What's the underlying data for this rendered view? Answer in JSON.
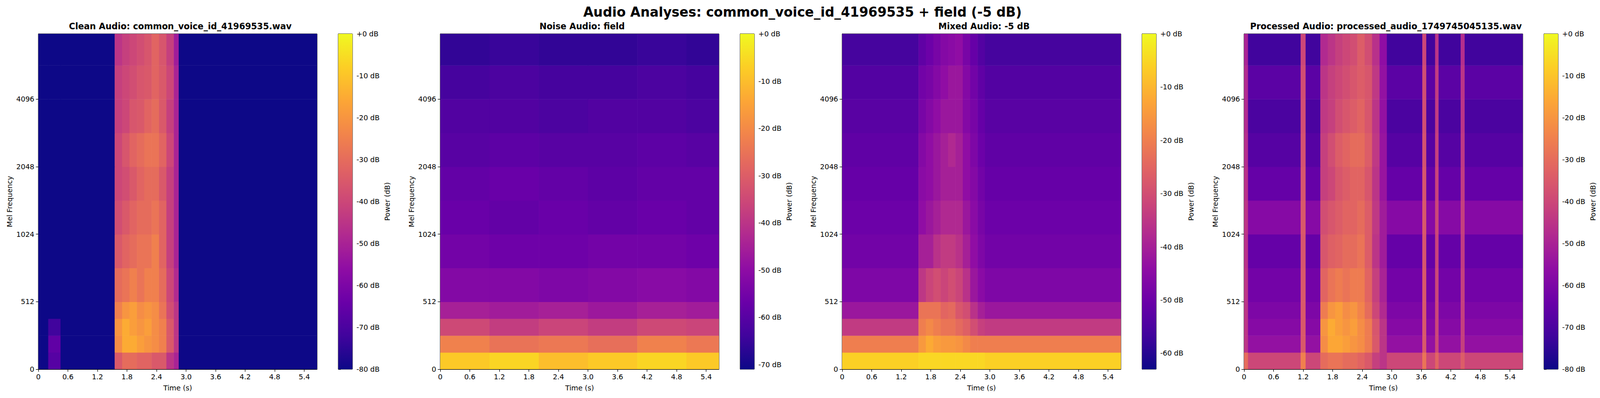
{
  "title": "Audio Analyses: common_voice_id_41969535 + field (-5 dB)",
  "chart_data": [
    {
      "type": "heatmap",
      "title": "Clean Audio: common_voice_id_41969535.wav",
      "x_label": "Time (s)",
      "y_label": "Mel Frequency",
      "xlim": [
        0,
        5.66
      ],
      "xticks": [
        0,
        0.6,
        1.2,
        1.8,
        2.4,
        {
          "value": 3,
          "label": "3.0"
        },
        3.6,
        4.2,
        4.8,
        5.4
      ],
      "ylim": [
        0,
        8000
      ],
      "yticks": [
        0,
        512,
        1024,
        2048,
        4096
      ],
      "x_bins": [
        0,
        0.2,
        0.45,
        1.55,
        1.7,
        1.85,
        2.0,
        2.15,
        2.3,
        2.45,
        2.6,
        2.75,
        2.85,
        5.66
      ],
      "y_bins": [
        0,
        128,
        256,
        384,
        512,
        768,
        1024,
        1448,
        2048,
        2896,
        4096,
        5793,
        8000
      ],
      "cells": [
        [
          -80,
          -68,
          -80,
          -35,
          -30,
          -30,
          -32,
          -32,
          -35,
          -35,
          -45,
          -50,
          -80
        ],
        [
          -80,
          -66,
          -80,
          -22,
          -15,
          -15,
          -18,
          -20,
          -22,
          -25,
          -35,
          -45,
          -80
        ],
        [
          -80,
          -72,
          -80,
          -20,
          -15,
          -18,
          -20,
          -18,
          -22,
          -25,
          -35,
          -45,
          -80
        ],
        [
          -80,
          -80,
          -80,
          -25,
          -20,
          -18,
          -22,
          -20,
          -22,
          -28,
          -38,
          -45,
          -80
        ],
        [
          -80,
          -80,
          -80,
          -30,
          -28,
          -25,
          -28,
          -25,
          -25,
          -30,
          -40,
          -48,
          -80
        ],
        [
          -80,
          -80,
          -80,
          -35,
          -32,
          -30,
          -28,
          -28,
          -25,
          -32,
          -42,
          -50,
          -80
        ],
        [
          -80,
          -80,
          -80,
          -38,
          -35,
          -32,
          -30,
          -30,
          -28,
          -32,
          -42,
          -50,
          -80
        ],
        [
          -80,
          -80,
          -80,
          -40,
          -38,
          -35,
          -32,
          -30,
          -30,
          -35,
          -42,
          -50,
          -80
        ],
        [
          -80,
          -80,
          -80,
          -40,
          -36,
          -32,
          -30,
          -28,
          -28,
          -32,
          -40,
          -50,
          -80
        ],
        [
          -80,
          -80,
          -80,
          -42,
          -40,
          -36,
          -35,
          -32,
          -30,
          -35,
          -42,
          -50,
          -80
        ],
        [
          -80,
          -80,
          -80,
          -42,
          -40,
          -38,
          -36,
          -35,
          -32,
          -35,
          -40,
          -50,
          -80
        ],
        [
          -80,
          -80,
          -80,
          -45,
          -42,
          -40,
          -38,
          -36,
          -32,
          -36,
          -42,
          -52,
          -80
        ]
      ],
      "colorbar": {
        "label": "Power (dB)",
        "range": [
          -80,
          0
        ],
        "ticks": [
          {
            "value": 0,
            "label": "+0 dB"
          },
          {
            "value": -10,
            "label": "-10 dB"
          },
          {
            "value": -20,
            "label": "-20 dB"
          },
          {
            "value": -30,
            "label": "-30 dB"
          },
          {
            "value": -40,
            "label": "-40 dB"
          },
          {
            "value": -50,
            "label": "-50 dB"
          },
          {
            "value": -60,
            "label": "-60 dB"
          },
          {
            "value": -70,
            "label": "-70 dB"
          },
          {
            "value": -80,
            "label": "-80 dB"
          }
        ]
      }
    },
    {
      "type": "heatmap",
      "title": "Noise Audio: field",
      "x_label": "Time (s)",
      "y_label": "Mel Frequency",
      "xlim": [
        0,
        5.66
      ],
      "xticks": [
        0,
        0.6,
        1.2,
        1.8,
        2.4,
        {
          "value": 3,
          "label": "3.0"
        },
        3.6,
        4.2,
        4.8,
        5.4
      ],
      "ylim": [
        0,
        8000
      ],
      "yticks": [
        0,
        512,
        1024,
        2048,
        4096
      ],
      "x_bins": [
        0,
        1,
        2,
        3,
        4,
        5,
        5.66
      ],
      "y_bins": [
        0,
        128,
        256,
        384,
        512,
        768,
        1024,
        1448,
        2048,
        2896,
        4096,
        5793,
        8000
      ],
      "cells": [
        [
          -8,
          -6,
          -10,
          -8,
          -6,
          -8
        ],
        [
          -22,
          -25,
          -24,
          -26,
          -22,
          -24
        ],
        [
          -35,
          -38,
          -36,
          -38,
          -35,
          -36
        ],
        [
          -45,
          -46,
          -45,
          -47,
          -45,
          -46
        ],
        [
          -52,
          -52,
          -53,
          -52,
          -51,
          -52
        ],
        [
          -55,
          -56,
          -56,
          -55,
          -55,
          -56
        ],
        [
          -57,
          -58,
          -57,
          -58,
          -57,
          -58
        ],
        [
          -58,
          -57,
          -58,
          -59,
          -58,
          -58
        ],
        [
          -60,
          -59,
          -60,
          -60,
          -59,
          -60
        ],
        [
          -61,
          -61,
          -62,
          -61,
          -61,
          -62
        ],
        [
          -63,
          -62,
          -63,
          -63,
          -62,
          -63
        ],
        [
          -66,
          -65,
          -66,
          -66,
          -65,
          -66
        ]
      ],
      "colorbar": {
        "label": "Power (dB)",
        "range": [
          -71,
          0
        ],
        "ticks": [
          {
            "value": 0,
            "label": "+0 dB"
          },
          {
            "value": -10,
            "label": "-10 dB"
          },
          {
            "value": -20,
            "label": "-20 dB"
          },
          {
            "value": -30,
            "label": "-30 dB"
          },
          {
            "value": -40,
            "label": "-40 dB"
          },
          {
            "value": -50,
            "label": "-50 dB"
          },
          {
            "value": -60,
            "label": "-60 dB"
          },
          {
            "value": -70,
            "label": "-70 dB"
          }
        ]
      }
    },
    {
      "type": "heatmap",
      "title": "Mixed Audio: -5 dB",
      "x_label": "Time (s)",
      "y_label": "Mel Frequency",
      "xlim": [
        0,
        5.66
      ],
      "xticks": [
        0,
        0.6,
        1.2,
        1.8,
        2.4,
        {
          "value": 3,
          "label": "3.0"
        },
        3.6,
        4.2,
        4.8,
        5.4
      ],
      "ylim": [
        0,
        8000
      ],
      "yticks": [
        0,
        512,
        1024,
        2048,
        4096
      ],
      "x_bins": [
        0,
        1.55,
        1.7,
        1.85,
        2.0,
        2.15,
        2.3,
        2.45,
        2.6,
        2.75,
        2.9,
        5.66
      ],
      "y_bins": [
        0,
        128,
        256,
        384,
        512,
        768,
        1024,
        1448,
        2048,
        2896,
        4096,
        5793,
        8000
      ],
      "cells": [
        [
          -6,
          -5,
          -5,
          -5,
          -5,
          -5,
          -5,
          -5,
          -5,
          -5,
          -6
        ],
        [
          -20,
          -15,
          -12,
          -14,
          -15,
          -15,
          -16,
          -18,
          -20,
          -20,
          -20
        ],
        [
          -34,
          -20,
          -18,
          -20,
          -22,
          -22,
          -24,
          -26,
          -30,
          -33,
          -34
        ],
        [
          -42,
          -22,
          -22,
          -22,
          -25,
          -24,
          -28,
          -30,
          -36,
          -40,
          -42
        ],
        [
          -47,
          -35,
          -32,
          -30,
          -32,
          -30,
          -32,
          -36,
          -42,
          -45,
          -47
        ],
        [
          -49,
          -40,
          -40,
          -36,
          -34,
          -34,
          -36,
          -40,
          -44,
          -47,
          -49
        ],
        [
          -50,
          -44,
          -42,
          -40,
          -38,
          -38,
          -38,
          -42,
          -45,
          -48,
          -50
        ],
        [
          -51,
          -45,
          -44,
          -42,
          -40,
          -40,
          -40,
          -44,
          -46,
          -49,
          -51
        ],
        [
          -52,
          -46,
          -44,
          -42,
          -40,
          -38,
          -40,
          -44,
          -47,
          -50,
          -52
        ],
        [
          -53,
          -48,
          -46,
          -44,
          -42,
          -42,
          -42,
          -46,
          -48,
          -51,
          -53
        ],
        [
          -54,
          -49,
          -48,
          -46,
          -44,
          -42,
          -42,
          -46,
          -49,
          -52,
          -54
        ],
        [
          -56,
          -52,
          -50,
          -48,
          -46,
          -45,
          -44,
          -48,
          -51,
          -54,
          -56
        ]
      ],
      "colorbar": {
        "label": "Power (dB)",
        "range": [
          -63,
          0
        ],
        "ticks": [
          {
            "value": 0,
            "label": "+0 dB"
          },
          {
            "value": -10,
            "label": "-10 dB"
          },
          {
            "value": -20,
            "label": "-20 dB"
          },
          {
            "value": -30,
            "label": "-30 dB"
          },
          {
            "value": -40,
            "label": "-40 dB"
          },
          {
            "value": -50,
            "label": "-50 dB"
          },
          {
            "value": -60,
            "label": "-60 dB"
          }
        ]
      }
    },
    {
      "type": "heatmap",
      "title": "Processed Audio: processed_audio_1749745045135.wav",
      "x_label": "Time (s)",
      "y_label": "Mel Frequency",
      "xlim": [
        0,
        5.66
      ],
      "xticks": [
        0,
        0.6,
        1.2,
        1.8,
        2.4,
        {
          "value": 3,
          "label": "3.0"
        },
        3.6,
        4.2,
        4.8,
        5.4
      ],
      "ylim": [
        0,
        8000
      ],
      "yticks": [
        0,
        512,
        1024,
        2048,
        4096
      ],
      "x_bins": [
        0,
        0.08,
        1.15,
        1.25,
        1.55,
        1.7,
        1.85,
        2.0,
        2.15,
        2.3,
        2.45,
        2.6,
        2.75,
        2.9,
        3.62,
        3.7,
        3.88,
        3.95,
        4.4,
        4.48,
        5.66
      ],
      "y_bins": [
        0,
        128,
        256,
        384,
        512,
        768,
        1024,
        1448,
        2048,
        2896,
        4096,
        5793,
        8000
      ],
      "cells": [
        [
          -30,
          -40,
          -25,
          -40,
          -30,
          -28,
          -28,
          -30,
          -30,
          -32,
          -35,
          -42,
          -45,
          -40,
          -28,
          -40,
          -32,
          -40,
          -34,
          -40
        ],
        [
          -45,
          -55,
          -35,
          -55,
          -22,
          -16,
          -16,
          -18,
          -20,
          -22,
          -26,
          -35,
          -45,
          -55,
          -35,
          -55,
          -40,
          -55,
          -42,
          -55
        ],
        [
          -45,
          -58,
          -35,
          -58,
          -20,
          -15,
          -18,
          -20,
          -18,
          -22,
          -26,
          -36,
          -45,
          -58,
          -35,
          -58,
          -40,
          -58,
          -42,
          -58
        ],
        [
          -45,
          -60,
          -35,
          -60,
          -26,
          -20,
          -18,
          -22,
          -20,
          -24,
          -30,
          -40,
          -48,
          -60,
          -35,
          -60,
          -40,
          -60,
          -42,
          -60
        ],
        [
          -45,
          -62,
          -35,
          -62,
          -32,
          -28,
          -26,
          -28,
          -26,
          -26,
          -32,
          -42,
          -50,
          -62,
          -35,
          -62,
          -40,
          -62,
          -42,
          -62
        ],
        [
          -46,
          -65,
          -36,
          -65,
          -36,
          -33,
          -32,
          -30,
          -30,
          -28,
          -34,
          -45,
          -52,
          -65,
          -36,
          -65,
          -41,
          -65,
          -43,
          -65
        ],
        [
          -45,
          -58,
          -35,
          -58,
          -38,
          -36,
          -34,
          -32,
          -32,
          -30,
          -34,
          -44,
          -52,
          -58,
          -35,
          -58,
          -40,
          -58,
          -42,
          -58
        ],
        [
          -46,
          -65,
          -36,
          -65,
          -42,
          -40,
          -36,
          -34,
          -32,
          -32,
          -36,
          -45,
          -54,
          -65,
          -36,
          -65,
          -41,
          -65,
          -43,
          -65
        ],
        [
          -47,
          -68,
          -37,
          -68,
          -42,
          -38,
          -34,
          -32,
          -30,
          -30,
          -34,
          -44,
          -54,
          -68,
          -37,
          -68,
          -42,
          -68,
          -44,
          -68
        ],
        [
          -48,
          -70,
          -38,
          -70,
          -44,
          -42,
          -38,
          -36,
          -34,
          -32,
          -36,
          -45,
          -55,
          -70,
          -38,
          -70,
          -43,
          -70,
          -45,
          -70
        ],
        [
          -48,
          -67,
          -38,
          -67,
          -45,
          -42,
          -40,
          -38,
          -36,
          -34,
          -36,
          -44,
          -55,
          -67,
          -38,
          -67,
          -43,
          -67,
          -45,
          -67
        ],
        [
          -50,
          -72,
          -40,
          -72,
          -48,
          -45,
          -42,
          -40,
          -38,
          -34,
          -38,
          -46,
          -56,
          -72,
          -40,
          -72,
          -45,
          -72,
          -47,
          -72
        ]
      ],
      "colorbar": {
        "label": "Power (dB)",
        "range": [
          -80,
          0
        ],
        "ticks": [
          {
            "value": 0,
            "label": "+0 dB"
          },
          {
            "value": -10,
            "label": "-10 dB"
          },
          {
            "value": -20,
            "label": "-20 dB"
          },
          {
            "value": -30,
            "label": "-30 dB"
          },
          {
            "value": -40,
            "label": "-40 dB"
          },
          {
            "value": -50,
            "label": "-50 dB"
          },
          {
            "value": -60,
            "label": "-60 dB"
          },
          {
            "value": -70,
            "label": "-70 dB"
          },
          {
            "value": -80,
            "label": "-80 dB"
          }
        ]
      }
    }
  ]
}
